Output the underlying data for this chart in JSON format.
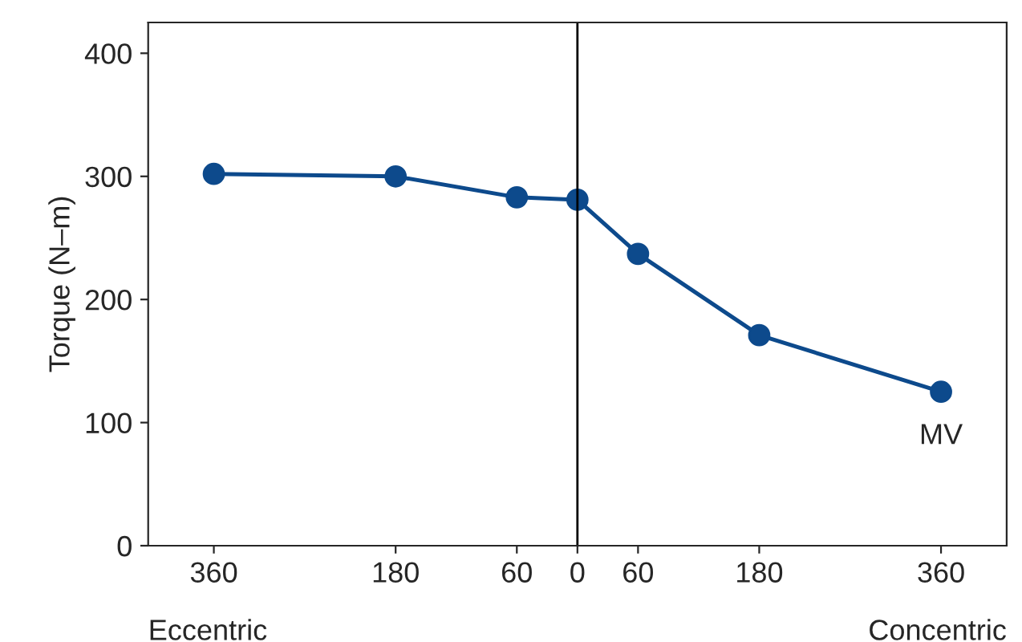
{
  "chart_data": {
    "type": "line",
    "ylabel": "Torque (N–m)",
    "x": [
      -360,
      -180,
      -60,
      0,
      60,
      180,
      360
    ],
    "series": [
      {
        "color": "#0d4a8c",
        "values": [
          302,
          300,
          283,
          281,
          237,
          171,
          125
        ]
      }
    ],
    "xlim": [
      -425,
      425
    ],
    "xticks": [
      {
        "value": -360,
        "label": "360"
      },
      {
        "value": -180,
        "label": "180"
      },
      {
        "value": -60,
        "label": "60"
      },
      0,
      60,
      180,
      360
    ],
    "ylim": [
      0,
      425
    ],
    "yticks": [
      0,
      100,
      200,
      300,
      400
    ],
    "ref_lines": [
      {
        "axis": "x",
        "value": 0,
        "color": "#000000"
      }
    ],
    "annotations": [
      {
        "text": "MV",
        "x": 360,
        "y": 125
      },
      "Eccentric",
      "Concentric"
    ],
    "marker": "circle",
    "line_style": "solid",
    "grid": false,
    "legend": false
  }
}
